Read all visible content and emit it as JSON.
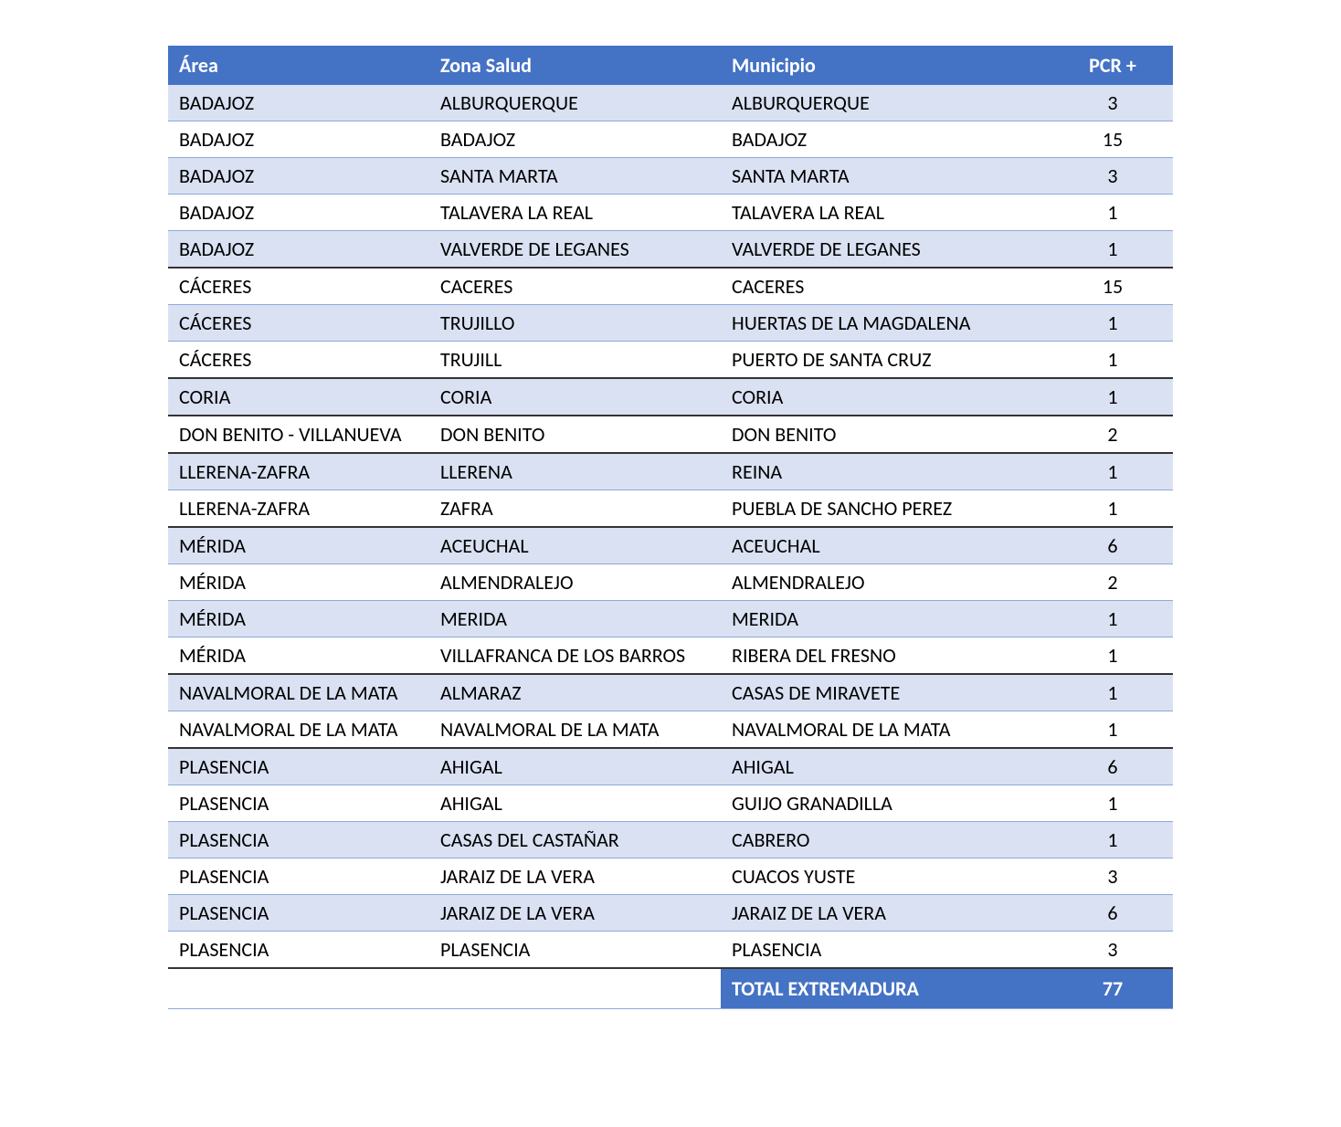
{
  "table": {
    "headers": {
      "area": "Área",
      "zona": "Zona Salud",
      "municipio": "Municipio",
      "pcr": "PCR +"
    },
    "rows": [
      {
        "area": "BADAJOZ",
        "zona": "ALBURQUERQUE",
        "municipio": "ALBURQUERQUE",
        "pcr": "3",
        "stripe": "odd",
        "group_end": false
      },
      {
        "area": "BADAJOZ",
        "zona": "BADAJOZ",
        "municipio": "BADAJOZ",
        "pcr": "15",
        "stripe": "even",
        "group_end": false
      },
      {
        "area": "BADAJOZ",
        "zona": "SANTA MARTA",
        "municipio": "SANTA MARTA",
        "pcr": "3",
        "stripe": "odd",
        "group_end": false
      },
      {
        "area": "BADAJOZ",
        "zona": "TALAVERA LA REAL",
        "municipio": "TALAVERA LA REAL",
        "pcr": "1",
        "stripe": "even",
        "group_end": false
      },
      {
        "area": "BADAJOZ",
        "zona": "VALVERDE DE LEGANES",
        "municipio": "VALVERDE DE LEGANES",
        "pcr": "1",
        "stripe": "odd",
        "group_end": true
      },
      {
        "area": "CÁCERES",
        "zona": "CACERES",
        "municipio": "CACERES",
        "pcr": "15",
        "stripe": "even",
        "group_end": false
      },
      {
        "area": "CÁCERES",
        "zona": "TRUJILLO",
        "municipio": "HUERTAS DE LA MAGDALENA",
        "pcr": "1",
        "stripe": "odd",
        "group_end": false
      },
      {
        "area": "CÁCERES",
        "zona": "TRUJILL",
        "municipio": "PUERTO DE SANTA CRUZ",
        "pcr": "1",
        "stripe": "even",
        "group_end": true
      },
      {
        "area": "CORIA",
        "zona": "CORIA",
        "municipio": "CORIA",
        "pcr": "1",
        "stripe": "odd",
        "group_end": true
      },
      {
        "area": "DON BENITO - VILLANUEVA",
        "zona": "DON BENITO",
        "municipio": "DON BENITO",
        "pcr": "2",
        "stripe": "even",
        "group_end": true
      },
      {
        "area": "LLERENA-ZAFRA",
        "zona": "LLERENA",
        "municipio": "REINA",
        "pcr": "1",
        "stripe": "odd",
        "group_end": false
      },
      {
        "area": "LLERENA-ZAFRA",
        "zona": "ZAFRA",
        "municipio": "PUEBLA DE SANCHO PEREZ",
        "pcr": "1",
        "stripe": "even",
        "group_end": true
      },
      {
        "area": "MÉRIDA",
        "zona": "ACEUCHAL",
        "municipio": "ACEUCHAL",
        "pcr": "6",
        "stripe": "odd",
        "group_end": false
      },
      {
        "area": "MÉRIDA",
        "zona": "ALMENDRALEJO",
        "municipio": "ALMENDRALEJO",
        "pcr": "2",
        "stripe": "even",
        "group_end": false
      },
      {
        "area": "MÉRIDA",
        "zona": "MERIDA",
        "municipio": "MERIDA",
        "pcr": "1",
        "stripe": "odd",
        "group_end": false
      },
      {
        "area": "MÉRIDA",
        "zona": "VILLAFRANCA DE LOS BARROS",
        "municipio": "RIBERA DEL FRESNO",
        "pcr": "1",
        "stripe": "even",
        "group_end": true
      },
      {
        "area": "NAVALMORAL DE LA MATA",
        "zona": "ALMARAZ",
        "municipio": "CASAS DE MIRAVETE",
        "pcr": "1",
        "stripe": "odd",
        "group_end": false
      },
      {
        "area": "NAVALMORAL DE LA MATA",
        "zona": "NAVALMORAL DE LA MATA",
        "municipio": "NAVALMORAL DE LA MATA",
        "pcr": "1",
        "stripe": "even",
        "group_end": true
      },
      {
        "area": "PLASENCIA",
        "zona": "AHIGAL",
        "municipio": "AHIGAL",
        "pcr": "6",
        "stripe": "odd",
        "group_end": false
      },
      {
        "area": "PLASENCIA",
        "zona": "AHIGAL",
        "municipio": "GUIJO GRANADILLA",
        "pcr": "1",
        "stripe": "even",
        "group_end": false
      },
      {
        "area": "PLASENCIA",
        "zona": "CASAS DEL CASTAÑAR",
        "municipio": "CABRERO",
        "pcr": "1",
        "stripe": "odd",
        "group_end": false
      },
      {
        "area": "PLASENCIA",
        "zona": "JARAIZ DE LA VERA",
        "municipio": "CUACOS YUSTE",
        "pcr": "3",
        "stripe": "even",
        "group_end": false
      },
      {
        "area": "PLASENCIA",
        "zona": "JARAIZ DE LA VERA",
        "municipio": "JARAIZ DE LA VERA",
        "pcr": "6",
        "stripe": "odd",
        "group_end": false
      },
      {
        "area": "PLASENCIA",
        "zona": "PLASENCIA",
        "municipio": "PLASENCIA",
        "pcr": "3",
        "stripe": "even",
        "group_end": true
      }
    ],
    "total": {
      "label": "TOTAL EXTREMADURA",
      "value": "77"
    },
    "colors": {
      "header_bg": "#4472c4",
      "header_text": "#ffffff",
      "odd_row_bg": "#d9e1f2",
      "even_row_bg": "#ffffff",
      "row_border": "#8ea9db",
      "group_border": "#333333",
      "text_color": "#000000"
    },
    "column_widths_pct": [
      26,
      29,
      33,
      12
    ],
    "font_family": "Calibri",
    "font_size_pt": 16
  }
}
